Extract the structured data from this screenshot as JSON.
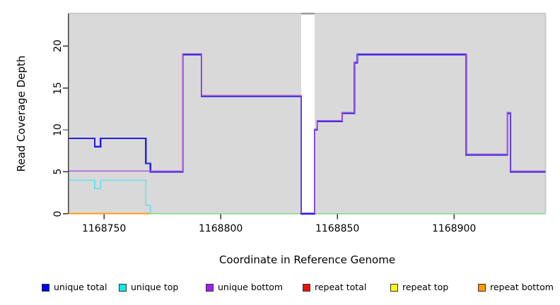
{
  "chart_data": {
    "type": "line",
    "style": "step",
    "title": "",
    "xlabel": "Coordinate in Reference Genome",
    "ylabel": "Read Coverage Depth",
    "xlim": [
      1168734.8,
      1168939.2
    ],
    "ylim": [
      0,
      23.9
    ],
    "x_tick_values": [
      1168750,
      1168800,
      1168850,
      1168900
    ],
    "x_tick_labels": [
      "1168750",
      "1168800",
      "1168850",
      "1168900"
    ],
    "y_tick_values": [
      0,
      5,
      10,
      15,
      20
    ],
    "y_tick_labels": [
      "0",
      "5",
      "10",
      "15",
      "20"
    ],
    "grid": false,
    "panel_background": "#d9d9d9",
    "figure_background": "#ffffff",
    "masked_region": {
      "x_start": 1168834.5,
      "x_end": 1168840.3,
      "color": "#ffffff",
      "cap_color": "#999999"
    },
    "series": [
      {
        "name": "zero baseline",
        "color": "#7ed87e",
        "width": 1.6,
        "segments": [
          [
            1168734.8,
            1168939.2,
            0
          ]
        ]
      },
      {
        "name": "repeat total",
        "color": "#e01010",
        "width": 2,
        "segments": [
          [
            1168734.8,
            1168769.9,
            0
          ]
        ]
      },
      {
        "name": "repeat top",
        "color": "#ffff00",
        "width": 2,
        "segments": [
          [
            1168734.8,
            1168769.9,
            0
          ]
        ]
      },
      {
        "name": "repeat bottom",
        "color": "#ff9d14",
        "width": 2,
        "segments": [
          [
            1168734.8,
            1168769.9,
            0
          ]
        ]
      },
      {
        "name": "unique top",
        "color": "#62e3e8",
        "width": 1.6,
        "segments": [
          [
            1168734.8,
            1168746.0,
            4
          ],
          [
            1168746.0,
            1168748.5,
            3
          ],
          [
            1168748.5,
            1168767.9,
            4
          ],
          [
            1168767.9,
            1168769.9,
            1
          ],
          [
            1168769.9,
            1168769.9,
            0
          ]
        ]
      },
      {
        "name": "unique total",
        "color": "#2a1edf",
        "width": 2.2,
        "segments": [
          [
            1168734.8,
            1168746.0,
            9
          ],
          [
            1168746.0,
            1168748.5,
            8
          ],
          [
            1168748.5,
            1168767.9,
            9
          ],
          [
            1168767.9,
            1168769.9,
            6
          ],
          [
            1168769.9,
            1168783.7,
            5
          ],
          [
            1168783.7,
            1168791.8,
            19
          ],
          [
            1168791.8,
            1168834.5,
            14
          ],
          [
            1168834.5,
            1168840.3,
            0
          ],
          [
            1168840.3,
            1168841.3,
            10
          ],
          [
            1168841.3,
            1168852.1,
            11
          ],
          [
            1168852.1,
            1168857.3,
            12
          ],
          [
            1168857.3,
            1168858.5,
            18
          ],
          [
            1168858.5,
            1168905.2,
            19
          ],
          [
            1168905.2,
            1168922.8,
            7
          ],
          [
            1168922.8,
            1168924.2,
            12
          ],
          [
            1168924.2,
            1168939.2,
            5
          ]
        ]
      },
      {
        "name": "unique bottom",
        "color": "#a55ddb",
        "width": 1.4,
        "offset_y": -1.2,
        "segments": [
          [
            1168734.8,
            1168783.7,
            5
          ],
          [
            1168783.7,
            1168791.8,
            19
          ],
          [
            1168791.8,
            1168834.5,
            14
          ],
          [
            1168834.5,
            1168840.3,
            0
          ],
          [
            1168840.3,
            1168841.3,
            10
          ],
          [
            1168841.3,
            1168852.1,
            11
          ],
          [
            1168852.1,
            1168857.3,
            12
          ],
          [
            1168857.3,
            1168858.5,
            18
          ],
          [
            1168858.5,
            1168905.2,
            19
          ],
          [
            1168905.2,
            1168922.8,
            7
          ],
          [
            1168922.8,
            1168924.2,
            12
          ],
          [
            1168924.2,
            1168939.2,
            5
          ]
        ]
      }
    ],
    "legend": [
      {
        "label": "unique total",
        "color": "#0000f0"
      },
      {
        "label": "unique top",
        "color": "#00eeee"
      },
      {
        "label": "unique bottom",
        "color": "#a020f0"
      },
      {
        "label": "repeat total",
        "color": "#ee1111"
      },
      {
        "label": "repeat top",
        "color": "#ffff00"
      },
      {
        "label": "repeat bottom",
        "color": "#ff9800"
      }
    ],
    "legend_position": "bottom",
    "axis_colors": {
      "left_axis": "#444444",
      "ticks": "#333333",
      "box_light": "#c9c9c9"
    }
  }
}
